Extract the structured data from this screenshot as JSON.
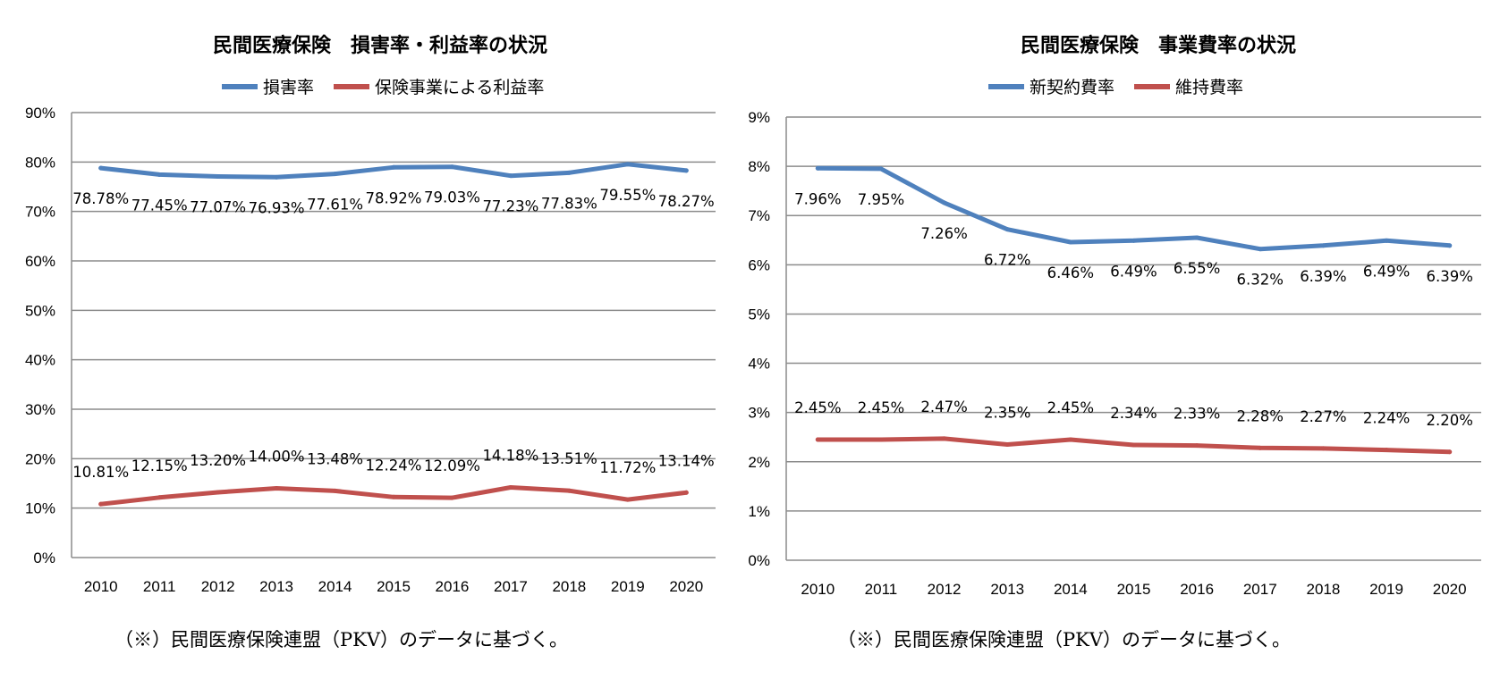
{
  "chart_data": [
    {
      "type": "line",
      "title": "民間医療保険　損害率・利益率の状況",
      "categories": [
        "2010",
        "2011",
        "2012",
        "2013",
        "2014",
        "2015",
        "2016",
        "2017",
        "2018",
        "2019",
        "2020"
      ],
      "series": [
        {
          "name": "損害率",
          "color": "#4F81BD",
          "label_pos": "below",
          "values": [
            78.78,
            77.45,
            77.07,
            76.93,
            77.61,
            78.92,
            79.03,
            77.23,
            77.83,
            79.55,
            78.27
          ],
          "labels": [
            "78.78%",
            "77.45%",
            "77.07%",
            "76.93%",
            "77.61%",
            "78.92%",
            "79.03%",
            "77.23%",
            "77.83%",
            "79.55%",
            "78.27%"
          ]
        },
        {
          "name": "保険事業による利益率",
          "color": "#C0504D",
          "label_pos": "above",
          "values": [
            10.81,
            12.15,
            13.2,
            14.0,
            13.48,
            12.24,
            12.09,
            14.18,
            13.51,
            11.72,
            13.14
          ],
          "labels": [
            "10.81%",
            "12.15%",
            "13.20%",
            "14.00%",
            "13.48%",
            "12.24%",
            "12.09%",
            "14.18%",
            "13.51%",
            "11.72%",
            "13.14%"
          ]
        }
      ],
      "ylim": [
        0,
        90
      ],
      "yticks": [
        "0%",
        "10%",
        "20%",
        "30%",
        "40%",
        "50%",
        "60%",
        "70%",
        "80%",
        "90%"
      ],
      "xlabel": "",
      "ylabel": "",
      "grid": true,
      "legend": "top-center"
    },
    {
      "type": "line",
      "title": "民間医療保険　事業費率の状況",
      "categories": [
        "2010",
        "2011",
        "2012",
        "2013",
        "2014",
        "2015",
        "2016",
        "2017",
        "2018",
        "2019",
        "2020"
      ],
      "series": [
        {
          "name": "新契約費率",
          "color": "#4F81BD",
          "label_pos": "below",
          "values": [
            7.96,
            7.95,
            7.26,
            6.72,
            6.46,
            6.49,
            6.55,
            6.32,
            6.39,
            6.49,
            6.39
          ],
          "labels": [
            "7.96%",
            "7.95%",
            "7.26%",
            "6.72%",
            "6.46%",
            "6.49%",
            "6.55%",
            "6.32%",
            "6.39%",
            "6.49%",
            "6.39%"
          ]
        },
        {
          "name": "維持費率",
          "color": "#C0504D",
          "label_pos": "above",
          "values": [
            2.45,
            2.45,
            2.47,
            2.35,
            2.45,
            2.34,
            2.33,
            2.28,
            2.27,
            2.24,
            2.2
          ],
          "labels": [
            "2.45%",
            "2.45%",
            "2.47%",
            "2.35%",
            "2.45%",
            "2.34%",
            "2.33%",
            "2.28%",
            "2.27%",
            "2.24%",
            "2.20%"
          ]
        }
      ],
      "ylim": [
        0,
        9
      ],
      "yticks": [
        "0%",
        "1%",
        "2%",
        "3%",
        "4%",
        "5%",
        "6%",
        "7%",
        "8%",
        "9%"
      ],
      "xlabel": "",
      "ylabel": "",
      "grid": true,
      "legend": "top-center"
    }
  ],
  "notes": {
    "left": "（※）民間医療保険連盟（PKV）のデータに基づく。",
    "right": "（※）民間医療保険連盟（PKV）のデータに基づく。"
  }
}
